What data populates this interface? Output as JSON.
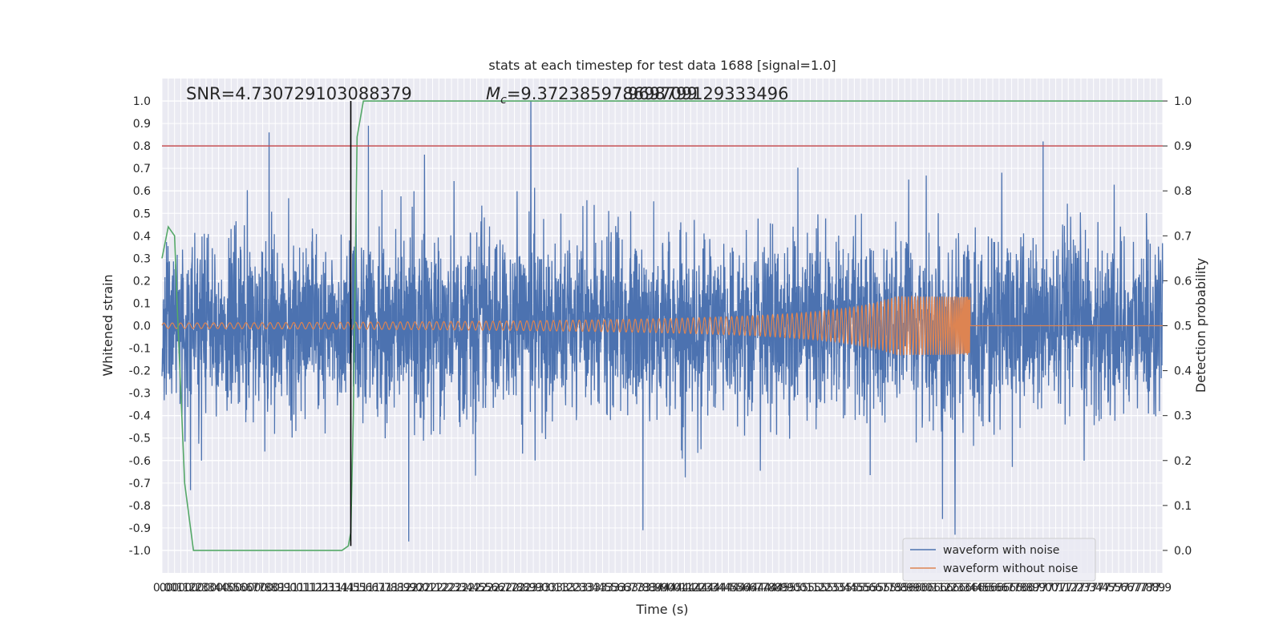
{
  "chart_data": {
    "type": "line",
    "title": "stats at each timestep for test data 1688 [signal=1.0]",
    "xlabel": "Time (s)",
    "ylabel": "Whitened strain",
    "ylabel_right": "Detection probability",
    "xlim": [
      0,
      7.95
    ],
    "ylim": [
      -1.1,
      1.1
    ],
    "ylim_right": [
      -0.05,
      1.05
    ],
    "xticks_step": 0.05,
    "xticks": [
      "0.0",
      "0.0",
      "0.1",
      "0.1",
      "0.2",
      "0.2",
      "0.3",
      "0.3",
      "0.4",
      "0.4",
      "0.5",
      "0.5",
      "0.6",
      "0.6",
      "0.7",
      "0.7",
      "0.8",
      "0.8",
      "0.9",
      "0.9",
      "1.0",
      "1.0",
      "1.1",
      "1.1",
      "1.2",
      "1.2",
      "1.3",
      "1.3",
      "1.4",
      "1.4",
      "1.5",
      "1.5",
      "1.6",
      "1.6",
      "1.7",
      "1.7",
      "1.8",
      "1.8",
      "1.9",
      "1.9",
      "2.0",
      "2.0",
      "2.1",
      "2.1",
      "2.2",
      "2.2",
      "2.3",
      "2.3",
      "2.4",
      "2.4",
      "2.5",
      "2.5",
      "2.6",
      "2.6",
      "2.7",
      "2.7",
      "2.8",
      "2.8",
      "2.9",
      "2.9",
      "3.0",
      "3.0",
      "3.1",
      "3.1",
      "3.2",
      "3.2",
      "3.3",
      "3.3",
      "3.4",
      "3.4",
      "3.5",
      "3.5",
      "3.6",
      "3.6",
      "3.7",
      "3.7",
      "3.8",
      "3.8",
      "3.9",
      "3.9",
      "4.0",
      "4.0",
      "4.1",
      "4.1",
      "4.2",
      "4.2",
      "4.3",
      "4.3",
      "4.4",
      "4.4",
      "4.5",
      "4.5",
      "4.6",
      "4.6",
      "4.7",
      "4.7",
      "4.8",
      "4.8",
      "4.9",
      "4.9",
      "5.0",
      "5.0",
      "5.1",
      "5.1",
      "5.2",
      "5.2",
      "5.3",
      "5.3",
      "5.4",
      "5.4",
      "5.5",
      "5.5",
      "5.6",
      "5.6",
      "5.7",
      "5.7",
      "5.8",
      "5.8",
      "5.9",
      "5.9",
      "6.0",
      "6.0",
      "6.1",
      "6.1",
      "6.2",
      "6.2",
      "6.3",
      "6.3",
      "6.4",
      "6.4",
      "6.5",
      "6.5",
      "6.6",
      "6.6",
      "6.7",
      "6.7",
      "6.8",
      "6.8",
      "6.9",
      "6.9",
      "7.0",
      "7.0",
      "7.1",
      "7.1",
      "7.2",
      "7.2",
      "7.3",
      "7.3",
      "7.4",
      "7.4",
      "7.5",
      "7.5",
      "7.6",
      "7.6",
      "7.7",
      "7.7",
      "7.8",
      "7.8",
      "7.9",
      "7.9"
    ],
    "yticks": [
      "1.0",
      "0.9",
      "0.8",
      "0.7",
      "0.6",
      "0.5",
      "0.4",
      "0.3",
      "0.2",
      "0.1",
      "0.0",
      "-0.1",
      "-0.2",
      "-0.3",
      "-0.4",
      "-0.5",
      "-0.6",
      "-0.7",
      "-0.8",
      "-0.9",
      "-1.0"
    ],
    "yticks_right": [
      "1.0",
      "0.9",
      "0.8",
      "0.7",
      "0.6",
      "0.5",
      "0.4",
      "0.3",
      "0.2",
      "0.1",
      "0.0"
    ],
    "annotations": {
      "snr": "SNR=4.730729103088379",
      "mc_prefix": "M",
      "mc_sub": "c",
      "mc_value": "=9.372385978698799",
      "overlap": "7.969709129333496"
    },
    "series": [
      {
        "name": "waveform with noise",
        "color": "#4c72b0",
        "style": "dense-noise",
        "band_rms": 0.2,
        "peak_times": [
          0.85,
          1.64,
          2.93,
          7.0
        ],
        "peak_values": [
          0.86,
          0.89,
          1.0,
          0.82
        ],
        "trough_times": [
          1.96,
          3.82,
          6.2,
          6.3
        ],
        "trough_values": [
          -0.96,
          -0.91,
          -0.86,
          -0.93
        ]
      },
      {
        "name": "waveform without noise",
        "color": "#dd8452",
        "style": "chirp",
        "start_time": 0.0,
        "merger_time": 6.42,
        "initial_amplitude": 0.012,
        "peak_amplitude": 0.13,
        "initial_frequency_hz": 15,
        "final_frequency_hz": 120
      },
      {
        "name": "",
        "color": "#55a868",
        "axis": "right",
        "x": [
          0.0,
          0.05,
          0.1,
          0.12,
          0.18,
          0.25,
          0.4,
          0.8,
          1.2,
          1.43,
          1.48,
          1.5,
          1.52,
          1.55,
          1.6,
          2.0,
          4.0,
          6.0,
          7.95
        ],
        "y": [
          0.65,
          0.72,
          0.7,
          0.55,
          0.15,
          0.0,
          0.0,
          0.0,
          0.0,
          0.0,
          0.01,
          0.04,
          0.3,
          0.92,
          1.0,
          1.0,
          1.0,
          1.0,
          1.0
        ]
      }
    ],
    "hlines_right": [
      {
        "y": 0.9,
        "color": "#c44e52"
      }
    ],
    "vlines": [
      {
        "x": 1.5,
        "color": "#000000"
      }
    ],
    "legend_position": "lower right",
    "grid": true
  }
}
